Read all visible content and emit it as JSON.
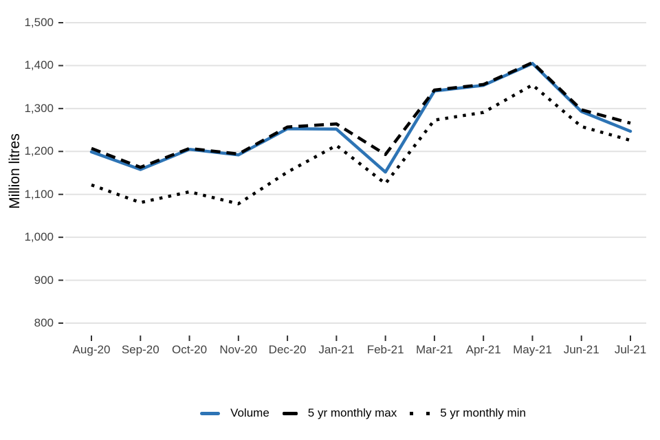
{
  "colors": {
    "accent_blue": "#2D74B5",
    "line_black": "#000000",
    "grid_gray": "#E2E2E2",
    "tick_mark": "#333333",
    "tick_text": "#414141"
  },
  "chart_data": {
    "type": "line",
    "title": "",
    "xlabel": "",
    "ylabel": "Million litres",
    "grid": "horizontal",
    "legend_position": "bottom",
    "ylim": [
      780,
      1520
    ],
    "y_ticks": {
      "values": [
        800,
        900,
        1000,
        1100,
        1200,
        1300,
        1400,
        1500
      ],
      "labels": [
        "800",
        "900",
        "1,000",
        "1,100",
        "1,200",
        "1,300",
        "1,400",
        "1,500"
      ]
    },
    "categories": [
      "Aug-20",
      "Sep-20",
      "Oct-20",
      "Nov-20",
      "Dec-20",
      "Jan-21",
      "Feb-21",
      "Mar-21",
      "Apr-21",
      "May-21",
      "Jun-21",
      "Jul-21"
    ],
    "series": [
      {
        "name": "Volume",
        "style": "solid",
        "color": "#2D74B5",
        "values": [
          1199,
          1158,
          1205,
          1192,
          1253,
          1252,
          1152,
          1341,
          1354,
          1405,
          1293,
          1247
        ]
      },
      {
        "name": "5 yr monthly max",
        "style": "dashed",
        "color": "#000000",
        "values": [
          1207,
          1163,
          1207,
          1194,
          1257,
          1264,
          1193,
          1343,
          1356,
          1407,
          1297,
          1266
        ]
      },
      {
        "name": "5 yr monthly min",
        "style": "dotted",
        "color": "#000000",
        "values": [
          1122,
          1081,
          1106,
          1078,
          1152,
          1214,
          1125,
          1273,
          1291,
          1355,
          1258,
          1226
        ]
      }
    ]
  }
}
